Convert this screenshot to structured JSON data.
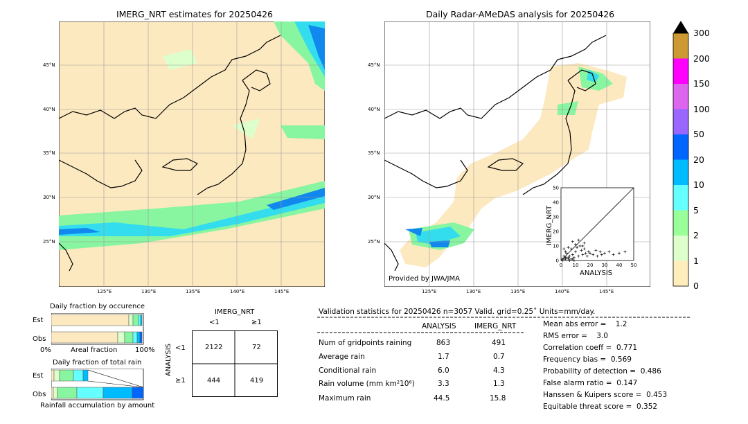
{
  "maps": {
    "left_title": "IMERG_NRT estimates for 20250426",
    "right_title": "Daily Radar-AMeDAS analysis for 20250426",
    "lat_labels": [
      "45°N",
      "40°N",
      "35°N",
      "30°N",
      "25°N"
    ],
    "lon_labels": [
      "125°E",
      "130°E",
      "135°E",
      "140°E",
      "145°E"
    ],
    "credit": "Provided by JWA/JMA"
  },
  "colorbar": {
    "ticks": [
      "300",
      "200",
      "150",
      "100",
      "50",
      "20",
      "10",
      "5",
      "2",
      "1",
      "0"
    ],
    "colors": [
      "#cc9933",
      "#ff00ff",
      "#dd66ee",
      "#9966ff",
      "#0066ff",
      "#00bbff",
      "#66ffff",
      "#99ff99",
      "#ddffcc",
      "#ffeebb"
    ]
  },
  "inset": {
    "xlabel": "ANALYSIS",
    "ylabel": "IMERG_NRT",
    "ticks": [
      "0",
      "10",
      "20",
      "30",
      "40",
      "50"
    ]
  },
  "fraction_occ": {
    "title": "Daily fraction by occurence",
    "rows": [
      "Est",
      "Obs"
    ],
    "xlabel_left": "0%",
    "xlabel_mid": "Areal fraction",
    "xlabel_right": "100%"
  },
  "fraction_rain": {
    "title": "Daily fraction of total rain",
    "rows": [
      "Est",
      "Obs"
    ],
    "xlabel": "Rainfall accumulation by amount"
  },
  "contingency": {
    "title": "IMERG_NRT",
    "col_lt": "<1",
    "col_ge": "≥1",
    "row_axis": "ANALYSIS",
    "row_lt": "<1",
    "row_ge": "≥1",
    "cells": [
      "2122",
      "72",
      "444",
      "419"
    ]
  },
  "validation": {
    "header": "Validation statistics for 20250426  n=3057 Valid. grid=0.25˚ Units=mm/day.",
    "col_analysis": "ANALYSIS",
    "col_imerg": "IMERG_NRT",
    "rows": [
      {
        "label": "Num of gridpoints raining",
        "a": "863",
        "b": "491"
      },
      {
        "label": "Average rain",
        "a": "1.7",
        "b": "0.7"
      },
      {
        "label": "Conditional rain",
        "a": "6.0",
        "b": "4.3"
      },
      {
        "label": "Rain volume (mm km²10⁶)",
        "a": "3.3",
        "b": "1.3"
      },
      {
        "label": "Maximum rain",
        "a": "44.5",
        "b": "15.8"
      }
    ],
    "scores": [
      "Mean abs error =    1.2",
      "RMS error =    3.0",
      "Correlation coeff =  0.771",
      "Frequency bias =  0.569",
      "Probability of detection =  0.486",
      "False alarm ratio =  0.147",
      "Hanssen & Kuipers score =  0.453",
      "Equitable threat score =  0.352"
    ]
  },
  "chart_data": [
    {
      "type": "scatter",
      "xlabel": "ANALYSIS",
      "ylabel": "IMERG_NRT",
      "xlim": [
        0,
        50
      ],
      "ylim": [
        0,
        50
      ],
      "points": [
        [
          1,
          1
        ],
        [
          2,
          3
        ],
        [
          3,
          2
        ],
        [
          4,
          5
        ],
        [
          5,
          1
        ],
        [
          6,
          3
        ],
        [
          7,
          8
        ],
        [
          8,
          4
        ],
        [
          9,
          2
        ],
        [
          10,
          6
        ],
        [
          11,
          9
        ],
        [
          12,
          3
        ],
        [
          13,
          10
        ],
        [
          14,
          7
        ],
        [
          15,
          4
        ],
        [
          16,
          8
        ],
        [
          17,
          5
        ],
        [
          18,
          3
        ],
        [
          19,
          6
        ],
        [
          20,
          5
        ],
        [
          22,
          4
        ],
        [
          24,
          7
        ],
        [
          25,
          3
        ],
        [
          27,
          6
        ],
        [
          28,
          4
        ],
        [
          30,
          5
        ],
        [
          33,
          6
        ],
        [
          36,
          4
        ],
        [
          40,
          5
        ],
        [
          44,
          6
        ],
        [
          2,
          8
        ],
        [
          3,
          6
        ],
        [
          5,
          9
        ],
        [
          8,
          13
        ],
        [
          10,
          11
        ],
        [
          12,
          14
        ],
        [
          15,
          10
        ],
        [
          16,
          12
        ],
        [
          1,
          0
        ],
        [
          2,
          1
        ],
        [
          3,
          1
        ],
        [
          4,
          2
        ],
        [
          5,
          2
        ],
        [
          6,
          0
        ],
        [
          7,
          1
        ],
        [
          8,
          1
        ],
        [
          9,
          0
        ]
      ]
    }
  ]
}
